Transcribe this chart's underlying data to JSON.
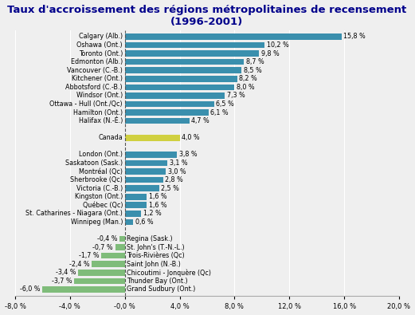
{
  "title": "Taux d'accroissement des régions métropolitaines de recensement\n(1996-2001)",
  "categories": [
    "Grand Sudbury (Ont.)",
    "Thunder Bay (Ont.)",
    "Chicoutimi - Jonquère (Qc)",
    "Saint John (N.-B.)",
    "Trois-Rivières (Qc)",
    "St. John's (T.-N.-L.)",
    "Regina (Sask.)",
    "",
    "Winnipeg (Man.)",
    "St. Catharines - Niagara (Ont.)",
    "Québec (Qc)",
    "Kingston (Ont.)",
    "Victoria (C.-B.)",
    "Sherbrooke (Qc)",
    "Montréal (Qc)",
    "Saskatoon (Sask.)",
    "London (Ont.)",
    "",
    "Canada",
    "",
    "Halifax (N.-É.)",
    "Hamilton (Ont.)",
    "Ottawa - Hull (Ont./Qc)",
    "Windsor (Ont.)",
    "Abbotsford (C.-B.)",
    "Kitchener (Ont.)",
    "Vancouver (C.-B.)",
    "Edmonton (Alb.)",
    "Toronto (Ont.)",
    "Oshawa (Ont.)",
    "Calgary (Alb.)"
  ],
  "values": [
    -6.0,
    -3.7,
    -3.4,
    -2.4,
    -1.7,
    -0.7,
    -0.4,
    null,
    0.6,
    1.2,
    1.6,
    1.6,
    2.5,
    2.8,
    3.0,
    3.1,
    3.8,
    null,
    4.0,
    null,
    4.7,
    6.1,
    6.5,
    7.3,
    8.0,
    8.2,
    8.5,
    8.7,
    9.8,
    10.2,
    15.8
  ],
  "bar_colors": [
    "#7fbc7a",
    "#7fbc7a",
    "#7fbc7a",
    "#7fbc7a",
    "#7fbc7a",
    "#7fbc7a",
    "#7fbc7a",
    null,
    "#3a8fad",
    "#3a8fad",
    "#3a8fad",
    "#3a8fad",
    "#3a8fad",
    "#3a8fad",
    "#3a8fad",
    "#3a8fad",
    "#3a8fad",
    null,
    "#d0d040",
    null,
    "#3a8fad",
    "#3a8fad",
    "#3a8fad",
    "#3a8fad",
    "#3a8fad",
    "#3a8fad",
    "#3a8fad",
    "#3a8fad",
    "#3a8fad",
    "#3a8fad",
    "#3a8fad"
  ],
  "xlim": [
    -8.0,
    20.0
  ],
  "xticks": [
    -8.0,
    -4.0,
    0.0,
    4.0,
    8.0,
    12.0,
    16.0,
    20.0
  ],
  "xtick_labels": [
    "-8,0 %",
    "-4,0 %",
    "-0,0 %",
    "4,0 %",
    "8,0 %",
    "12,0 %",
    "16,0 %",
    "20,0 %"
  ],
  "background_color": "#efefef",
  "title_color": "#00008b",
  "title_fontsize": 9.5,
  "bar_height": 0.72,
  "label_fontsize": 5.8,
  "cat_fontsize": 5.8
}
